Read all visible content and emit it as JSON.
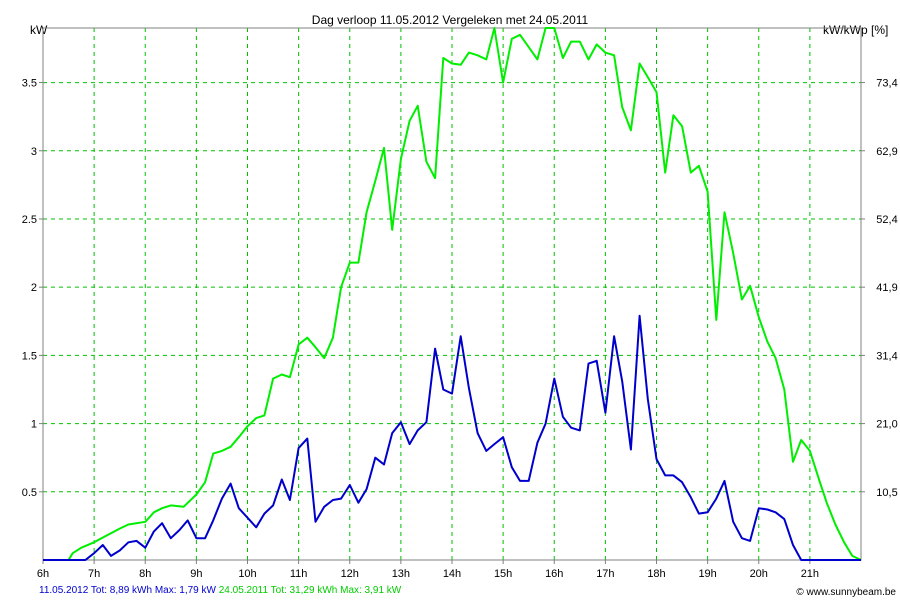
{
  "chart_data": {
    "type": "line",
    "title": "Dag  verloop 11.05.2012   Vergeleken met 24.05.2011",
    "ylabel_left": "kW",
    "ylabel_right": "kW/kWp [%]",
    "xlim": [
      6,
      22
    ],
    "ylim": [
      0,
      3.9
    ],
    "x_ticks": [
      {
        "v": 6,
        "label": "6h"
      },
      {
        "v": 7,
        "label": "7h"
      },
      {
        "v": 8,
        "label": "8h"
      },
      {
        "v": 9,
        "label": "9h"
      },
      {
        "v": 10,
        "label": "10h"
      },
      {
        "v": 11,
        "label": "11h"
      },
      {
        "v": 12,
        "label": "12h"
      },
      {
        "v": 13,
        "label": "13h"
      },
      {
        "v": 14,
        "label": "14h"
      },
      {
        "v": 15,
        "label": "15h"
      },
      {
        "v": 16,
        "label": "16h"
      },
      {
        "v": 17,
        "label": "17h"
      },
      {
        "v": 18,
        "label": "18h"
      },
      {
        "v": 19,
        "label": "19h"
      },
      {
        "v": 20,
        "label": "20h"
      },
      {
        "v": 21,
        "label": "21h"
      }
    ],
    "y_ticks_left": [
      {
        "v": 0.5,
        "label": "0.5"
      },
      {
        "v": 1,
        "label": "1"
      },
      {
        "v": 1.5,
        "label": "1.5"
      },
      {
        "v": 2,
        "label": "2"
      },
      {
        "v": 2.5,
        "label": "2.5"
      },
      {
        "v": 3,
        "label": "3"
      },
      {
        "v": 3.5,
        "label": "3.5"
      }
    ],
    "y_ticks_right": [
      {
        "v": 0.5,
        "label": "10,5"
      },
      {
        "v": 1,
        "label": "21,0"
      },
      {
        "v": 1.5,
        "label": "31,4"
      },
      {
        "v": 2,
        "label": "41,9"
      },
      {
        "v": 2.5,
        "label": "52,4"
      },
      {
        "v": 3,
        "label": "62,9"
      },
      {
        "v": 3.5,
        "label": "73,4"
      }
    ],
    "grid": true,
    "series": [
      {
        "name": "24.05.2011",
        "color": "#00ee00",
        "points": [
          [
            6.0,
            0
          ],
          [
            6.25,
            0
          ],
          [
            6.5,
            0
          ],
          [
            6.58,
            0.05
          ],
          [
            6.75,
            0.09
          ],
          [
            7.0,
            0.13
          ],
          [
            7.25,
            0.18
          ],
          [
            7.5,
            0.23
          ],
          [
            7.67,
            0.26
          ],
          [
            8.0,
            0.28
          ],
          [
            8.17,
            0.35
          ],
          [
            8.33,
            0.38
          ],
          [
            8.5,
            0.4
          ],
          [
            8.75,
            0.39
          ],
          [
            9.0,
            0.48
          ],
          [
            9.17,
            0.57
          ],
          [
            9.33,
            0.78
          ],
          [
            9.5,
            0.8
          ],
          [
            9.67,
            0.83
          ],
          [
            9.83,
            0.9
          ],
          [
            10.0,
            0.98
          ],
          [
            10.17,
            1.04
          ],
          [
            10.33,
            1.06
          ],
          [
            10.5,
            1.33
          ],
          [
            10.67,
            1.36
          ],
          [
            10.83,
            1.34
          ],
          [
            11.0,
            1.58
          ],
          [
            11.17,
            1.63
          ],
          [
            11.33,
            1.56
          ],
          [
            11.5,
            1.48
          ],
          [
            11.67,
            1.63
          ],
          [
            11.83,
            2.0
          ],
          [
            12.0,
            2.18
          ],
          [
            12.17,
            2.18
          ],
          [
            12.33,
            2.55
          ],
          [
            12.5,
            2.78
          ],
          [
            12.67,
            3.02
          ],
          [
            12.83,
            2.42
          ],
          [
            13.0,
            2.94
          ],
          [
            13.17,
            3.22
          ],
          [
            13.33,
            3.33
          ],
          [
            13.5,
            2.92
          ],
          [
            13.67,
            2.8
          ],
          [
            13.83,
            3.68
          ],
          [
            14.0,
            3.64
          ],
          [
            14.17,
            3.63
          ],
          [
            14.33,
            3.72
          ],
          [
            14.5,
            3.7
          ],
          [
            14.67,
            3.67
          ],
          [
            14.83,
            3.9
          ],
          [
            15.0,
            3.5
          ],
          [
            15.17,
            3.82
          ],
          [
            15.33,
            3.85
          ],
          [
            15.5,
            3.76
          ],
          [
            15.67,
            3.67
          ],
          [
            15.83,
            3.9
          ],
          [
            16.0,
            3.9
          ],
          [
            16.17,
            3.68
          ],
          [
            16.33,
            3.8
          ],
          [
            16.5,
            3.8
          ],
          [
            16.67,
            3.67
          ],
          [
            16.83,
            3.78
          ],
          [
            17.0,
            3.72
          ],
          [
            17.17,
            3.7
          ],
          [
            17.33,
            3.32
          ],
          [
            17.5,
            3.15
          ],
          [
            17.67,
            3.64
          ],
          [
            17.83,
            3.54
          ],
          [
            18.0,
            3.43
          ],
          [
            18.17,
            2.84
          ],
          [
            18.33,
            3.26
          ],
          [
            18.5,
            3.18
          ],
          [
            18.67,
            2.84
          ],
          [
            18.83,
            2.89
          ],
          [
            19.0,
            2.7
          ],
          [
            19.17,
            1.76
          ],
          [
            19.33,
            2.55
          ],
          [
            19.5,
            2.25
          ],
          [
            19.67,
            1.91
          ],
          [
            19.83,
            2.01
          ],
          [
            20.0,
            1.78
          ],
          [
            20.17,
            1.6
          ],
          [
            20.33,
            1.48
          ],
          [
            20.5,
            1.25
          ],
          [
            20.67,
            0.72
          ],
          [
            20.83,
            0.88
          ],
          [
            21.0,
            0.8
          ],
          [
            21.17,
            0.6
          ],
          [
            21.33,
            0.42
          ],
          [
            21.5,
            0.26
          ],
          [
            21.67,
            0.13
          ],
          [
            21.83,
            0.03
          ],
          [
            22.0,
            0
          ]
        ]
      },
      {
        "name": "11.05.2012",
        "color": "#0000cc",
        "points": [
          [
            6.0,
            0
          ],
          [
            6.5,
            0
          ],
          [
            6.83,
            0
          ],
          [
            7.0,
            0.05
          ],
          [
            7.17,
            0.11
          ],
          [
            7.33,
            0.03
          ],
          [
            7.5,
            0.07
          ],
          [
            7.67,
            0.13
          ],
          [
            7.83,
            0.14
          ],
          [
            8.0,
            0.09
          ],
          [
            8.17,
            0.21
          ],
          [
            8.33,
            0.27
          ],
          [
            8.5,
            0.16
          ],
          [
            8.67,
            0.22
          ],
          [
            8.83,
            0.29
          ],
          [
            9.0,
            0.16
          ],
          [
            9.17,
            0.16
          ],
          [
            9.33,
            0.29
          ],
          [
            9.5,
            0.45
          ],
          [
            9.67,
            0.56
          ],
          [
            9.83,
            0.38
          ],
          [
            10.0,
            0.31
          ],
          [
            10.17,
            0.24
          ],
          [
            10.33,
            0.34
          ],
          [
            10.5,
            0.4
          ],
          [
            10.67,
            0.59
          ],
          [
            10.83,
            0.44
          ],
          [
            11.0,
            0.82
          ],
          [
            11.17,
            0.89
          ],
          [
            11.33,
            0.28
          ],
          [
            11.5,
            0.39
          ],
          [
            11.67,
            0.44
          ],
          [
            11.83,
            0.45
          ],
          [
            12.0,
            0.55
          ],
          [
            12.17,
            0.42
          ],
          [
            12.33,
            0.52
          ],
          [
            12.5,
            0.75
          ],
          [
            12.67,
            0.7
          ],
          [
            12.83,
            0.93
          ],
          [
            13.0,
            1.01
          ],
          [
            13.17,
            0.85
          ],
          [
            13.33,
            0.95
          ],
          [
            13.5,
            1.01
          ],
          [
            13.67,
            1.55
          ],
          [
            13.83,
            1.25
          ],
          [
            14.0,
            1.22
          ],
          [
            14.17,
            1.64
          ],
          [
            14.33,
            1.26
          ],
          [
            14.5,
            0.93
          ],
          [
            14.67,
            0.8
          ],
          [
            14.83,
            0.85
          ],
          [
            15.0,
            0.9
          ],
          [
            15.17,
            0.68
          ],
          [
            15.33,
            0.58
          ],
          [
            15.5,
            0.58
          ],
          [
            15.67,
            0.86
          ],
          [
            15.83,
            1.0
          ],
          [
            16.0,
            1.33
          ],
          [
            16.17,
            1.05
          ],
          [
            16.33,
            0.97
          ],
          [
            16.5,
            0.95
          ],
          [
            16.67,
            1.44
          ],
          [
            16.83,
            1.46
          ],
          [
            17.0,
            1.08
          ],
          [
            17.17,
            1.64
          ],
          [
            17.33,
            1.31
          ],
          [
            17.5,
            0.81
          ],
          [
            17.67,
            1.79
          ],
          [
            17.83,
            1.18
          ],
          [
            18.0,
            0.74
          ],
          [
            18.17,
            0.62
          ],
          [
            18.33,
            0.62
          ],
          [
            18.5,
            0.57
          ],
          [
            18.67,
            0.46
          ],
          [
            18.83,
            0.34
          ],
          [
            19.0,
            0.35
          ],
          [
            19.17,
            0.45
          ],
          [
            19.33,
            0.58
          ],
          [
            19.5,
            0.28
          ],
          [
            19.67,
            0.16
          ],
          [
            19.83,
            0.14
          ],
          [
            20.0,
            0.38
          ],
          [
            20.17,
            0.37
          ],
          [
            20.33,
            0.35
          ],
          [
            20.5,
            0.3
          ],
          [
            20.67,
            0.11
          ],
          [
            20.83,
            0
          ],
          [
            21.0,
            0
          ],
          [
            22.0,
            0
          ]
        ]
      }
    ],
    "legend": [
      {
        "text": "11.05.2012 Tot: 8,89 kWh Max: 1,79 kW",
        "color": "#0000cc"
      },
      {
        "text": "24.05.2011 Tot: 31,29 kWh Max: 3,91 kW",
        "color": "#00cc00"
      }
    ],
    "credit": "© www.sunnybeam.be"
  }
}
